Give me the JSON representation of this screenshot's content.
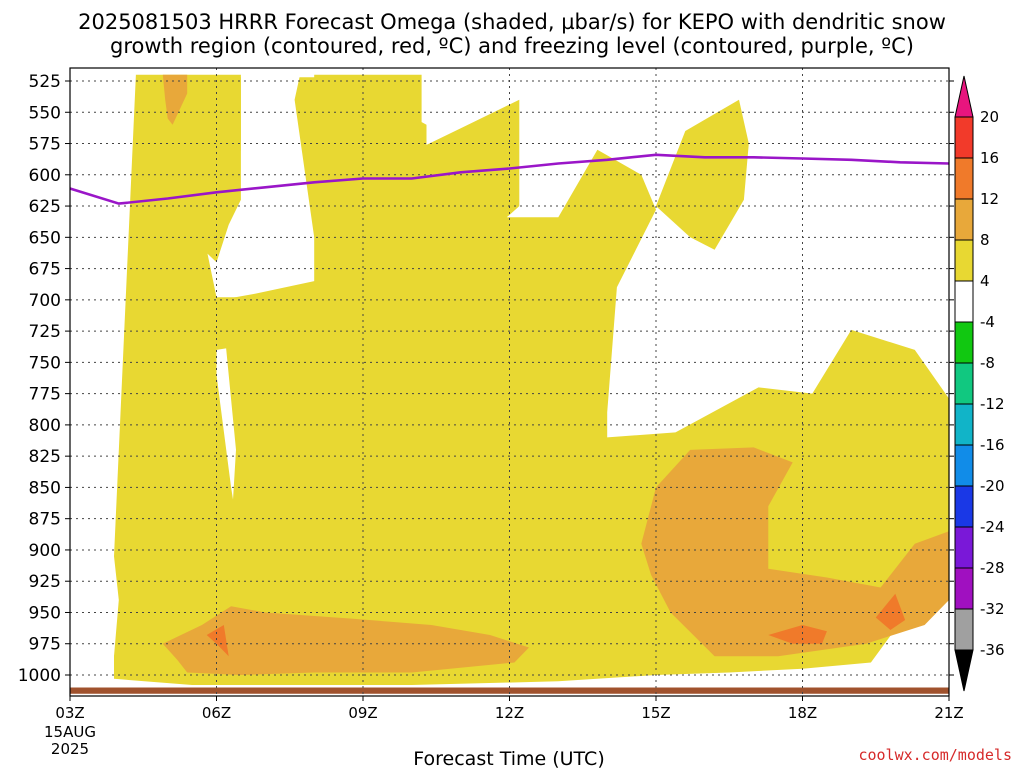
{
  "title": {
    "line1": "2025081503 HRRR Forecast Omega (shaded, µbar/s) for KEPO with dendritic snow",
    "line2": "growth region (contoured, red, ºC) and freezing level (contoured, purple, ºC)"
  },
  "credit": "coolwx.com/models",
  "chart_data": {
    "type": "heatmap",
    "title": "2025081503 HRRR Forecast Omega (shaded, µbar/s) for KEPO with dendritic snow growth region (contoured, red, ºC) and freezing level (contoured, purple, ºC)",
    "xlabel": "Forecast Time (UTC)",
    "ylabel": "",
    "x_range_hours": [
      0,
      18
    ],
    "x_ticks": [
      {
        "hour": 0,
        "label": "03Z",
        "sub": [
          "15AUG",
          "2025"
        ]
      },
      {
        "hour": 3,
        "label": "06Z"
      },
      {
        "hour": 6,
        "label": "09Z"
      },
      {
        "hour": 9,
        "label": "12Z"
      },
      {
        "hour": 12,
        "label": "15Z"
      },
      {
        "hour": 15,
        "label": "18Z"
      },
      {
        "hour": 18,
        "label": "21Z"
      }
    ],
    "y_axis": {
      "unit": "hPa",
      "inverted": true,
      "range": [
        520,
        1015
      ],
      "ticks": [
        525,
        550,
        575,
        600,
        625,
        650,
        675,
        700,
        725,
        750,
        775,
        800,
        825,
        850,
        875,
        900,
        925,
        950,
        975,
        1000
      ]
    },
    "grid": true,
    "colorbar": {
      "labels": [
        "20",
        "16",
        "12",
        "8",
        "4",
        "-4",
        "-8",
        "-12",
        "-16",
        "-20",
        "-24",
        "-28",
        "-32",
        "-36"
      ],
      "colors": [
        "#e8157e",
        "#f23a2a",
        "#f07a2a",
        "#e8a83a",
        "#e8d832",
        "#ffffff",
        "#11c811",
        "#11c880",
        "#11b4c8",
        "#118ce8",
        "#1a38e6",
        "#7a18d8",
        "#a010c0",
        "#a0a0a0",
        "#000000"
      ]
    },
    "shading_colors": {
      "4_to_8": "#e8d832",
      "8_to_12": "#e8a83a",
      "12_to_16": "#f07a2a",
      "ground": "#a0522d"
    },
    "freezing_level": {
      "color": "#9a16c8",
      "points": [
        {
          "hour": 0,
          "hPa": 611
        },
        {
          "hour": 1,
          "hPa": 623
        },
        {
          "hour": 2,
          "hPa": 619
        },
        {
          "hour": 3,
          "hPa": 614
        },
        {
          "hour": 4,
          "hPa": 610
        },
        {
          "hour": 5,
          "hPa": 606
        },
        {
          "hour": 6,
          "hPa": 603
        },
        {
          "hour": 7,
          "hPa": 603
        },
        {
          "hour": 8,
          "hPa": 598
        },
        {
          "hour": 9,
          "hPa": 595
        },
        {
          "hour": 10,
          "hPa": 591
        },
        {
          "hour": 11,
          "hPa": 588
        },
        {
          "hour": 12,
          "hPa": 584
        },
        {
          "hour": 13,
          "hPa": 586
        },
        {
          "hour": 14,
          "hPa": 586
        },
        {
          "hour": 15,
          "hPa": 587
        },
        {
          "hour": 16,
          "hPa": 588
        },
        {
          "hour": 17,
          "hPa": 590
        },
        {
          "hour": 18,
          "hPa": 591
        }
      ]
    },
    "regions": [
      {
        "level": "4_to_8",
        "points": [
          [
            1.35,
            520
          ],
          [
            3.5,
            520
          ],
          [
            3.5,
            580
          ],
          [
            2.8,
            660
          ],
          [
            3.0,
            698
          ],
          [
            6.45,
            698
          ],
          [
            7.5,
            650
          ],
          [
            5.8,
            690
          ],
          [
            5.0,
            650
          ],
          [
            5.0,
            520
          ],
          [
            7.2,
            520
          ],
          [
            7.2,
            578
          ],
          [
            9.2,
            540
          ],
          [
            9.2,
            625
          ],
          [
            8.2,
            660
          ],
          [
            6.6,
            665
          ],
          [
            6.6,
            545
          ],
          [
            7.3,
            560
          ],
          [
            7.3,
            660
          ],
          [
            6.2,
            720
          ],
          [
            3.0,
            740
          ],
          [
            3.0,
            760
          ],
          [
            3.3,
            850
          ],
          [
            3.5,
            900
          ],
          [
            3.0,
            925
          ],
          [
            2.2,
            955
          ],
          [
            1.5,
            990
          ],
          [
            0.9,
            1000
          ],
          [
            0.9,
            985
          ],
          [
            1.0,
            940
          ],
          [
            0.9,
            905
          ],
          [
            0.9,
            905
          ]
        ]
      },
      {
        "level": "4_to_8",
        "points": [
          [
            0,
            520
          ],
          [
            0,
            520
          ]
        ]
      },
      {
        "level": "4_to_8",
        "points": [
          [
            1.4,
            522
          ],
          [
            1.45,
            540
          ],
          [
            1.5,
            570
          ],
          [
            1.9,
            634
          ],
          [
            2.6,
            655
          ],
          [
            3.0,
            670
          ],
          [
            3.25,
            640
          ],
          [
            3.5,
            620
          ],
          [
            3.5,
            522
          ]
        ]
      },
      {
        "level": "4_to_8",
        "points": [
          [
            4.7,
            522
          ],
          [
            6.0,
            522
          ],
          [
            6.0,
            572
          ],
          [
            6.45,
            572
          ],
          [
            6.45,
            522
          ],
          [
            7.0,
            522
          ],
          [
            7.0,
            568
          ],
          [
            8.2,
            620
          ],
          [
            8.6,
            625
          ],
          [
            8.95,
            634
          ],
          [
            10.0,
            634
          ],
          [
            10.8,
            580
          ],
          [
            11.7,
            600
          ],
          [
            12.0,
            628
          ],
          [
            11.2,
            690
          ],
          [
            11.0,
            790
          ],
          [
            11.0,
            810
          ],
          [
            12.4,
            806
          ],
          [
            14.1,
            770
          ],
          [
            15.2,
            775
          ],
          [
            16.0,
            724
          ],
          [
            17.3,
            740
          ],
          [
            18.0,
            779
          ],
          [
            18.0,
            910
          ],
          [
            17.6,
            945
          ],
          [
            17.0,
            958
          ],
          [
            16.4,
            990
          ],
          [
            15.0,
            995
          ],
          [
            13.5,
            998
          ],
          [
            12.0,
            1000
          ],
          [
            10.0,
            1005
          ],
          [
            7.0,
            1008
          ],
          [
            4.0,
            1008
          ],
          [
            2.5,
            1008
          ],
          [
            0.9,
            1003
          ],
          [
            0.9,
            985
          ],
          [
            1.35,
            930
          ],
          [
            1.9,
            955
          ],
          [
            2.3,
            935
          ],
          [
            3.3,
            885
          ],
          [
            3.4,
            820
          ],
          [
            3.1,
            700
          ],
          [
            3.8,
            695
          ],
          [
            5.0,
            685
          ],
          [
            5.0,
            650
          ],
          [
            4.6,
            540
          ]
        ]
      },
      {
        "level": "4_to_8",
        "points": [
          [
            12.6,
            565
          ],
          [
            13.7,
            540
          ],
          [
            13.9,
            575
          ],
          [
            13.8,
            620
          ],
          [
            13.2,
            660
          ],
          [
            12.7,
            650
          ],
          [
            12.0,
            625
          ],
          [
            12.5,
            575
          ]
        ]
      },
      {
        "level": "8_to_12",
        "points": [
          [
            1.9,
            975
          ],
          [
            2.7,
            960
          ],
          [
            3.3,
            945
          ],
          [
            4.0,
            950
          ],
          [
            5.8,
            955
          ],
          [
            7.4,
            960
          ],
          [
            8.6,
            968
          ],
          [
            9.4,
            978
          ],
          [
            9.1,
            990
          ],
          [
            7.0,
            998
          ],
          [
            5.0,
            998
          ],
          [
            3.5,
            1000
          ],
          [
            2.4,
            998
          ],
          [
            2.2,
            988
          ]
        ]
      },
      {
        "level": "8_to_12",
        "points": [
          [
            12.0,
            850
          ],
          [
            12.7,
            820
          ],
          [
            14.0,
            818
          ],
          [
            14.8,
            830
          ],
          [
            14.3,
            865
          ],
          [
            14.3,
            915
          ],
          [
            15.5,
            922
          ],
          [
            16.6,
            930
          ],
          [
            17.3,
            895
          ],
          [
            18.0,
            885
          ],
          [
            18.0,
            940
          ],
          [
            17.5,
            960
          ],
          [
            16.3,
            975
          ],
          [
            14.5,
            985
          ],
          [
            13.2,
            985
          ],
          [
            12.3,
            950
          ],
          [
            11.9,
            920
          ],
          [
            11.7,
            895
          ]
        ]
      },
      {
        "level": "8_to_12",
        "points": [
          [
            1.9,
            520
          ],
          [
            2.4,
            520
          ],
          [
            2.4,
            535
          ],
          [
            2.1,
            560
          ],
          [
            2.0,
            555
          ],
          [
            1.95,
            540
          ]
        ]
      },
      {
        "level": "12_to_16",
        "points": [
          [
            2.8,
            968
          ],
          [
            3.15,
            960
          ],
          [
            3.25,
            985
          ],
          [
            3.0,
            975
          ]
        ]
      },
      {
        "level": "12_to_16",
        "points": [
          [
            14.3,
            968
          ],
          [
            15.0,
            960
          ],
          [
            15.5,
            965
          ],
          [
            15.4,
            975
          ],
          [
            14.8,
            975
          ]
        ]
      },
      {
        "level": "12_to_16",
        "points": [
          [
            16.5,
            954
          ],
          [
            16.9,
            935
          ],
          [
            17.1,
            956
          ],
          [
            16.8,
            964
          ]
        ]
      }
    ]
  }
}
